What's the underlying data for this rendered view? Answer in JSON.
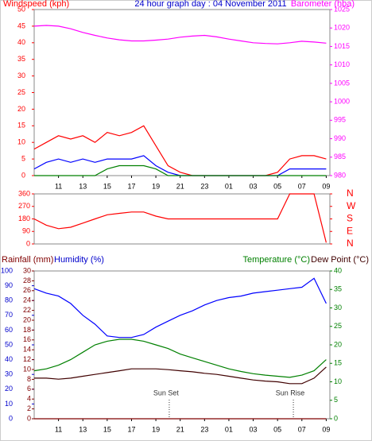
{
  "chart_data": [
    {
      "type": "line",
      "title": "24 hour graph day : 04 November 2011",
      "ylabel": "Windspeed (kph)",
      "y2label": "Barometer (hba)",
      "x": [
        9,
        10,
        11,
        12,
        13,
        14,
        15,
        16,
        17,
        18,
        19,
        20,
        21,
        22,
        23,
        24,
        25,
        26,
        27,
        28,
        29,
        30,
        31,
        32,
        33
      ],
      "xlim": [
        9,
        33.3
      ],
      "xticks": [
        11,
        13,
        15,
        17,
        19,
        21,
        23,
        {
          "value": 25,
          "label": "01"
        },
        {
          "value": 27,
          "label": "03"
        },
        {
          "value": 29,
          "label": "05"
        },
        {
          "value": 31,
          "label": "07"
        },
        {
          "value": 33,
          "label": "09"
        }
      ],
      "ylim": [
        0,
        50
      ],
      "yticks": [
        0,
        5,
        10,
        15,
        20,
        25,
        30,
        35,
        40,
        45,
        50
      ],
      "y2lim": [
        980,
        1025
      ],
      "y2ticks": [
        980,
        985,
        990,
        995,
        1000,
        1005,
        1010,
        1015,
        1020,
        1025
      ],
      "series": [
        {
          "color": "#ff0000",
          "values": [
            8,
            10,
            12,
            11,
            12,
            10,
            13,
            12,
            13,
            15,
            9,
            3,
            1,
            0,
            0,
            0,
            0,
            0,
            0,
            0,
            1,
            5,
            6,
            6,
            5
          ]
        },
        {
          "color": "#0000ff",
          "values": [
            2,
            4,
            5,
            4,
            5,
            4,
            5,
            5,
            5,
            6,
            3,
            1,
            0,
            0,
            0,
            0,
            0,
            0,
            0,
            0,
            0,
            2,
            2,
            2,
            2
          ]
        },
        {
          "color": "#008000",
          "values": [
            0,
            0,
            0,
            0,
            0,
            0,
            2,
            3,
            3,
            3,
            2,
            0,
            0,
            0,
            0,
            0,
            0,
            0,
            0,
            0,
            0,
            0,
            0,
            0,
            0
          ]
        },
        {
          "color": "#ff00ff",
          "axis": "y2",
          "values": [
            1020.5,
            1020.7,
            1020.5,
            1019.8,
            1018.8,
            1018,
            1017.3,
            1016.8,
            1016.5,
            1016.5,
            1016.7,
            1017,
            1017.5,
            1017.8,
            1018,
            1017.6,
            1017,
            1016.5,
            1016,
            1015.8,
            1015.7,
            1016,
            1016.4,
            1016.2,
            1015.9
          ]
        }
      ]
    },
    {
      "type": "line",
      "x": [
        9,
        10,
        11,
        12,
        13,
        14,
        15,
        16,
        17,
        18,
        19,
        20,
        21,
        22,
        23,
        24,
        25,
        26,
        27,
        28,
        29,
        30,
        31,
        32,
        33
      ],
      "xlim": [
        9,
        33.3
      ],
      "ylim": [
        0,
        360
      ],
      "yticks": [
        0,
        90,
        180,
        270,
        360
      ],
      "y2lim": [
        0,
        360
      ],
      "y2ticks": [
        {
          "value": 360,
          "label": "N"
        },
        {
          "value": 270,
          "label": "W"
        },
        {
          "value": 180,
          "label": "S"
        },
        {
          "value": 90,
          "label": "E"
        },
        {
          "value": 0,
          "label": "N"
        }
      ],
      "series": [
        {
          "color": "#ff0000",
          "values": [
            180,
            135,
            110,
            120,
            150,
            180,
            210,
            220,
            230,
            230,
            200,
            180,
            180,
            180,
            180,
            180,
            180,
            180,
            180,
            180,
            180,
            360,
            360,
            360,
            10
          ]
        }
      ]
    },
    {
      "type": "line",
      "ylabel": "Rainfall (mm)",
      "hlabel": "Humidity (%)",
      "y2label": "Temperature (°C)",
      "dlabel": "Dew Point (°C)",
      "x": [
        9,
        10,
        11,
        12,
        13,
        14,
        15,
        16,
        17,
        18,
        19,
        20,
        21,
        22,
        23,
        24,
        25,
        26,
        27,
        28,
        29,
        30,
        31,
        32,
        33
      ],
      "xlim": [
        9,
        33.3
      ],
      "xticks": [
        11,
        13,
        15,
        17,
        19,
        21,
        23,
        {
          "value": 25,
          "label": "01"
        },
        {
          "value": 27,
          "label": "03"
        },
        {
          "value": 29,
          "label": "05"
        },
        {
          "value": 31,
          "label": "07"
        },
        {
          "value": 33,
          "label": "09"
        }
      ],
      "ylim": [
        0,
        30
      ],
      "yticks": [
        0,
        2,
        4,
        6,
        8,
        10,
        12,
        14,
        16,
        18,
        20,
        22,
        24,
        26,
        28,
        30
      ],
      "hlim": [
        0,
        100
      ],
      "hticks": [
        0,
        10,
        20,
        30,
        40,
        50,
        60,
        70,
        80,
        90,
        100
      ],
      "y2lim": [
        0,
        40
      ],
      "y2ticks": [
        0,
        5,
        10,
        15,
        20,
        25,
        30,
        35,
        40
      ],
      "annotations": [
        {
          "text": "Sun Set",
          "x": 20.1
        },
        {
          "text": "Sun Rise",
          "x": 30.3
        }
      ],
      "series": [
        {
          "color": "#800000",
          "values": [
            0,
            0,
            0,
            0,
            0,
            0,
            0,
            0,
            0,
            0,
            0,
            0,
            0,
            0,
            0,
            0,
            0,
            0,
            0,
            0,
            0,
            0,
            0,
            0,
            0
          ]
        },
        {
          "color": "#0000ff",
          "axis": "h",
          "values": [
            88,
            85,
            83,
            78,
            70,
            64,
            56,
            55,
            55,
            57,
            62,
            66,
            70,
            73,
            77,
            80,
            82,
            83,
            85,
            86,
            87,
            88,
            89,
            95,
            78
          ]
        },
        {
          "color": "#008000",
          "axis": "y2",
          "values": [
            13,
            13.5,
            14.5,
            16,
            18,
            20,
            21,
            21.5,
            21.5,
            21,
            20,
            19,
            17.5,
            16.5,
            15.5,
            14.5,
            13.5,
            12.8,
            12.2,
            11.8,
            11.5,
            11.2,
            11.8,
            13,
            16
          ]
        },
        {
          "color": "#400000",
          "axis": "y2",
          "values": [
            11,
            11,
            10.7,
            11,
            11.5,
            12,
            12.5,
            13,
            13.5,
            13.5,
            13.5,
            13.3,
            13,
            12.7,
            12.3,
            12,
            11.5,
            11,
            10.5,
            10.2,
            10,
            9.5,
            9.5,
            11,
            14
          ]
        }
      ]
    }
  ]
}
